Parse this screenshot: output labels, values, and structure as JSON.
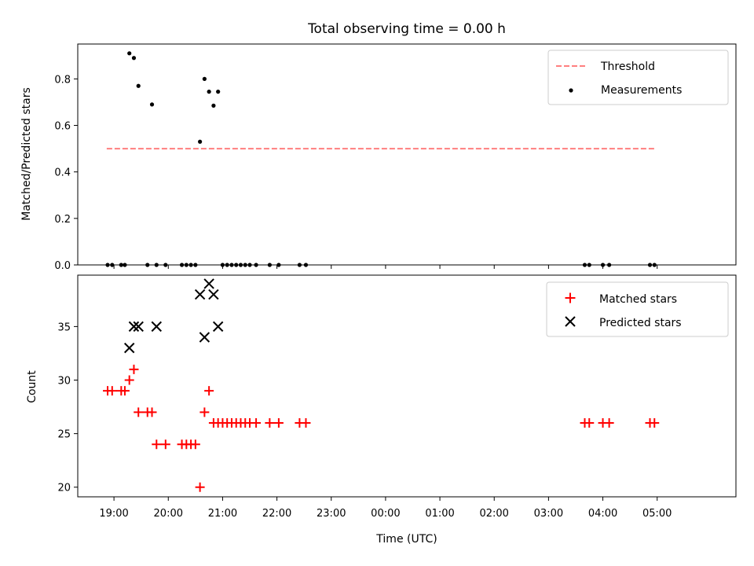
{
  "chart_data": [
    {
      "type": "scatter",
      "title": "Total observing time = 0.00 h",
      "ylabel": "Matched/Predicted stars",
      "xlabel": "",
      "ylim": [
        0,
        0.95
      ],
      "yticks": [
        0.0,
        0.2,
        0.4,
        0.6,
        0.8
      ],
      "ytick_labels": [
        "0.0",
        "0.2",
        "0.4",
        "0.6",
        "0.8"
      ],
      "x_tick_labels_visible": false,
      "legend_position": "upper right",
      "series": [
        {
          "name": "Threshold",
          "kind": "dashed-line",
          "color": "#ff7f7f",
          "x": [
            "18:52",
            "04:57"
          ],
          "y": [
            0.5,
            0.5
          ]
        },
        {
          "name": "Measurements",
          "kind": "dot",
          "color": "#000000",
          "x": [
            "18:53",
            "18:58",
            "19:08",
            "19:12",
            "19:17",
            "19:22",
            "19:27",
            "19:37",
            "19:42",
            "19:47",
            "19:57",
            "20:15",
            "20:20",
            "20:25",
            "20:30",
            "20:35",
            "20:40",
            "20:45",
            "20:50",
            "20:55",
            "21:00",
            "21:05",
            "21:10",
            "21:15",
            "21:20",
            "21:25",
            "21:30",
            "21:37",
            "21:52",
            "22:02",
            "22:25",
            "22:32",
            "03:40",
            "03:45",
            "04:00",
            "04:07",
            "04:52",
            "04:57"
          ],
          "y": [
            0,
            0,
            0,
            0,
            0.91,
            0.89,
            0.77,
            0,
            0.69,
            0,
            0,
            0,
            0,
            0,
            0,
            0.53,
            0.8,
            0.745,
            0.685,
            0.745,
            0,
            0,
            0,
            0,
            0,
            0,
            0,
            0,
            0,
            0,
            0,
            0,
            0,
            0,
            0,
            0,
            0,
            0
          ]
        }
      ]
    },
    {
      "type": "scatter",
      "title": "",
      "ylabel": "Count",
      "xlabel": "Time (UTC)",
      "ylim": [
        19.1,
        39.8
      ],
      "yticks": [
        20,
        25,
        30,
        35
      ],
      "ytick_labels": [
        "20",
        "25",
        "30",
        "35"
      ],
      "xtick_labels": [
        "19:00",
        "20:00",
        "21:00",
        "22:00",
        "23:00",
        "00:00",
        "01:00",
        "02:00",
        "03:00",
        "04:00",
        "05:00"
      ],
      "legend_position": "upper right",
      "series": [
        {
          "name": "Matched stars",
          "marker": "plus",
          "color": "#ff0000",
          "x": [
            "18:53",
            "18:58",
            "19:08",
            "19:12",
            "19:17",
            "19:22",
            "19:27",
            "19:37",
            "19:42",
            "19:47",
            "19:57",
            "20:15",
            "20:20",
            "20:25",
            "20:30",
            "20:35",
            "20:40",
            "20:45",
            "20:50",
            "20:55",
            "21:00",
            "21:05",
            "21:10",
            "21:15",
            "21:20",
            "21:25",
            "21:30",
            "21:37",
            "21:52",
            "22:02",
            "22:25",
            "22:32",
            "03:40",
            "03:45",
            "04:00",
            "04:07",
            "04:52",
            "04:57"
          ],
          "y": [
            29,
            29,
            29,
            29,
            30,
            31,
            27,
            27,
            27,
            24,
            24,
            24,
            24,
            24,
            24,
            20,
            27,
            29,
            26,
            26,
            26,
            26,
            26,
            26,
            26,
            26,
            26,
            26,
            26,
            26,
            26,
            26,
            26,
            26,
            26,
            26,
            26,
            26
          ]
        },
        {
          "name": "Predicted stars",
          "marker": "x",
          "color": "#000000",
          "x": [
            "19:17",
            "19:22",
            "19:27",
            "19:47",
            "20:35",
            "20:40",
            "20:45",
            "20:50",
            "20:55"
          ],
          "y": [
            33,
            35,
            35,
            35,
            38,
            34,
            39,
            38,
            35
          ]
        }
      ]
    }
  ]
}
